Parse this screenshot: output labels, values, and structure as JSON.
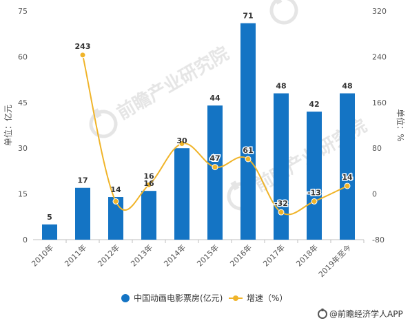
{
  "chart_data": {
    "type": "bar",
    "categories": [
      "2010年",
      "2011年",
      "2012年",
      "2013年",
      "2014年",
      "2015年",
      "2016年",
      "2017年",
      "2018年",
      "2019年至今"
    ],
    "series": [
      {
        "name": "中国动画电影票房(亿元)",
        "type": "bar",
        "axis": "left",
        "color": "#1474c4",
        "values": [
          5,
          17,
          14,
          16,
          30,
          44,
          71,
          48,
          42,
          48
        ]
      },
      {
        "name": "增速（%）",
        "type": "line",
        "axis": "right",
        "color": "#f0b429",
        "values": [
          null,
          243,
          -13,
          16,
          88,
          47,
          61,
          -32,
          -13,
          14
        ]
      }
    ],
    "bar_labels": [
      "5",
      "17",
      "14",
      "16",
      "30",
      "44",
      "71",
      "48",
      "42",
      "48"
    ],
    "line_labels": [
      "",
      "243",
      "",
      "16",
      "",
      "47",
      "61",
      "-32",
      "-13",
      "14"
    ],
    "ylabel": "单位：亿元",
    "y2label": "单位：%",
    "ylim": [
      0,
      75
    ],
    "yticks": [
      0,
      15,
      30,
      45,
      60,
      75
    ],
    "y2lim": [
      -80,
      320
    ],
    "y2ticks": [
      -80,
      0,
      80,
      160,
      240,
      320
    ],
    "grid": false,
    "legend_position": "bottom-center",
    "source": "@前瞻经济学人APP",
    "watermark": "前瞻产业研究院"
  }
}
